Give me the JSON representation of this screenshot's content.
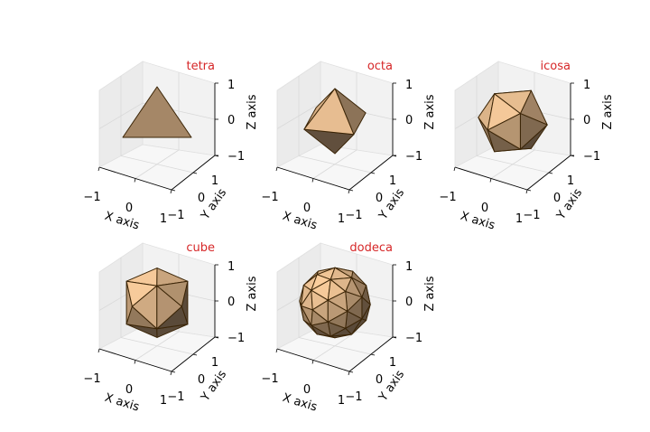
{
  "chart_data": [
    {
      "type": "3d-polyhedron",
      "title": "tetra",
      "xlabel": "X axis",
      "ylabel": "Y axis",
      "zlabel": "Z axis",
      "xlim": [
        -1,
        1
      ],
      "ylim": [
        -1,
        1
      ],
      "zlim": [
        -1,
        1
      ],
      "xticks": [
        "−1",
        "0",
        "1"
      ],
      "yticks": [
        "−1",
        "0",
        "1"
      ],
      "zticks": [
        "−1",
        "0",
        "1"
      ],
      "faces": 4
    },
    {
      "type": "3d-polyhedron",
      "title": "octa",
      "xlabel": "X axis",
      "ylabel": "Y axis",
      "zlabel": "Z axis",
      "xlim": [
        -1,
        1
      ],
      "ylim": [
        -1,
        1
      ],
      "zlim": [
        -1,
        1
      ],
      "xticks": [
        "−1",
        "0",
        "1"
      ],
      "yticks": [
        "−1",
        "0",
        "1"
      ],
      "zticks": [
        "−1",
        "0",
        "1"
      ],
      "faces": 8
    },
    {
      "type": "3d-polyhedron",
      "title": "icosa",
      "xlabel": "X axis",
      "ylabel": "Y axis",
      "zlabel": "Z axis",
      "xlim": [
        -1,
        1
      ],
      "ylim": [
        -1,
        1
      ],
      "zlim": [
        -1,
        1
      ],
      "xticks": [
        "−1",
        "0",
        "1"
      ],
      "yticks": [
        "−1",
        "0",
        "1"
      ],
      "zticks": [
        "−1",
        "0",
        "1"
      ],
      "faces": 20
    },
    {
      "type": "3d-polyhedron",
      "title": "cube",
      "xlabel": "X axis",
      "ylabel": "Y axis",
      "zlabel": "Z axis",
      "xlim": [
        -1,
        1
      ],
      "ylim": [
        -1,
        1
      ],
      "zlim": [
        -1,
        1
      ],
      "xticks": [
        "−1",
        "0",
        "1"
      ],
      "yticks": [
        "−1",
        "0",
        "1"
      ],
      "zticks": [
        "−1",
        "0",
        "1"
      ],
      "faces": 24
    },
    {
      "type": "3d-polyhedron",
      "title": "dodeca",
      "xlabel": "X axis",
      "ylabel": "Y axis",
      "zlabel": "Z axis",
      "xlim": [
        -1,
        1
      ],
      "ylim": [
        -1,
        1
      ],
      "zlim": [
        -1,
        1
      ],
      "xticks": [
        "−1",
        "0",
        "1"
      ],
      "yticks": [
        "−1",
        "0",
        "1"
      ],
      "zticks": [
        "−1",
        "0",
        "1"
      ],
      "faces": 60
    }
  ],
  "colors": {
    "title": "#d62728",
    "face_base": "#c9a57e",
    "edge": "#3b2507",
    "pane_back": "#f2f2f2",
    "pane_side": "#ebebeb",
    "pane_floor": "#f7f7f7",
    "grid": "#d9d9d9"
  }
}
